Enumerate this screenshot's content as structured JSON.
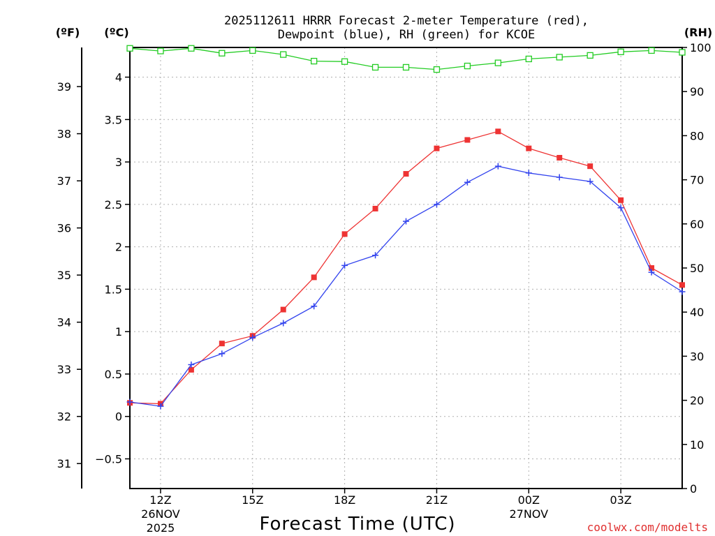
{
  "chart_data": {
    "type": "line",
    "title_line1": "2025112611 HRRR Forecast 2-meter Temperature (red),",
    "title_line2": "Dewpoint (blue), RH (green) for KCOE",
    "xlabel": "Forecast Time (UTC)",
    "watermark": "coolwx.com/modelts",
    "unit_f": "(ºF)",
    "unit_c": "(ºC)",
    "unit_rh": "(RH)",
    "x_hours": [
      11,
      12,
      13,
      14,
      15,
      16,
      17,
      18,
      19,
      20,
      21,
      22,
      23,
      24,
      25,
      26,
      27,
      28,
      29
    ],
    "xlim": [
      11,
      29
    ],
    "x_ticks": [
      {
        "hour": 12,
        "label": "12Z",
        "date": "26NOV",
        "year": "2025"
      },
      {
        "hour": 15,
        "label": "15Z",
        "date": "",
        "year": ""
      },
      {
        "hour": 18,
        "label": "18Z",
        "date": "",
        "year": ""
      },
      {
        "hour": 21,
        "label": "21Z",
        "date": "",
        "year": ""
      },
      {
        "hour": 24,
        "label": "00Z",
        "date": "27NOV",
        "year": ""
      },
      {
        "hour": 27,
        "label": "03Z",
        "date": "",
        "year": ""
      }
    ],
    "ylim_c": [
      -0.85,
      4.35
    ],
    "y_ticks_c": [
      "-0.5",
      "0",
      "0.5",
      "1",
      "1.5",
      "2",
      "2.5",
      "3",
      "3.5",
      "4"
    ],
    "y_ticks_f": [
      "31",
      "32",
      "33",
      "34",
      "35",
      "36",
      "37",
      "38",
      "39"
    ],
    "ylim_rh": [
      0,
      100
    ],
    "y_ticks_rh": [
      "0",
      "10",
      "20",
      "30",
      "40",
      "50",
      "60",
      "70",
      "80",
      "90",
      "100"
    ],
    "series": [
      {
        "name": "Temperature",
        "unit": "C",
        "color": "#ee3333",
        "marker": "filled-square",
        "values": [
          0.16,
          0.15,
          0.55,
          0.86,
          0.95,
          1.26,
          1.64,
          2.15,
          2.45,
          2.86,
          3.16,
          3.26,
          3.36,
          3.16,
          3.05,
          2.95,
          2.55,
          1.75,
          1.55
        ]
      },
      {
        "name": "Dewpoint",
        "unit": "C",
        "color": "#3344ee",
        "marker": "plus",
        "values": [
          0.17,
          0.12,
          0.61,
          0.74,
          0.93,
          1.1,
          1.3,
          1.78,
          1.9,
          2.3,
          2.5,
          2.76,
          2.95,
          2.87,
          2.82,
          2.77,
          2.46,
          1.7,
          1.47
        ]
      },
      {
        "name": "RH",
        "unit": "%",
        "color": "#22cc22",
        "marker": "open-square",
        "values": [
          99.8,
          99.2,
          99.8,
          98.7,
          99.3,
          98.4,
          96.9,
          96.8,
          95.5,
          95.5,
          95.0,
          95.8,
          96.5,
          97.4,
          97.8,
          98.2,
          99.0,
          99.3,
          98.9
        ]
      }
    ]
  }
}
